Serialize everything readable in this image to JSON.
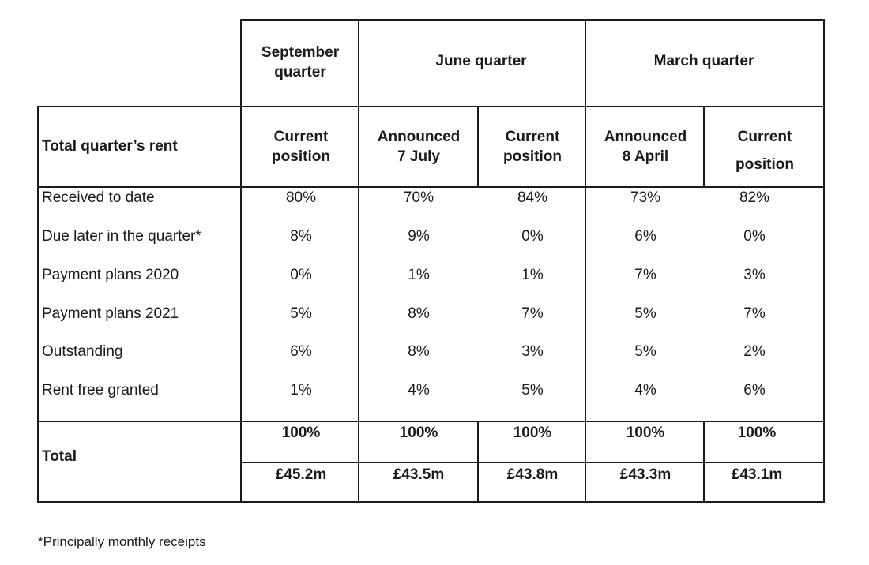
{
  "group_headers": [
    "September\nquarter",
    "June quarter",
    "March quarter"
  ],
  "row_header_title": "Total quarter’s rent",
  "column_headers": [
    "Current\nposition",
    "Announced\n7 July",
    "Current\nposition",
    "Announced\n8 April",
    "Current\nposition"
  ],
  "rows": [
    {
      "label": "Received to date",
      "values": [
        "80%",
        "70%",
        "84%",
        "73%",
        "82%"
      ]
    },
    {
      "label": "Due later in the quarter*",
      "values": [
        "8%",
        "9%",
        "0%",
        "6%",
        "0%"
      ]
    },
    {
      "label": "Payment plans 2020",
      "values": [
        "0%",
        "1%",
        "1%",
        "7%",
        "3%"
      ]
    },
    {
      "label": "Payment plans 2021",
      "values": [
        "5%",
        "8%",
        "7%",
        "5%",
        "7%"
      ]
    },
    {
      "label": "Outstanding",
      "values": [
        "6%",
        "8%",
        "3%",
        "5%",
        "2%"
      ]
    },
    {
      "label": "Rent free granted",
      "values": [
        "1%",
        "4%",
        "5%",
        "4%",
        "6%"
      ]
    }
  ],
  "total": {
    "label": "Total",
    "percent_values": [
      "100%",
      "100%",
      "100%",
      "100%",
      "100%"
    ],
    "amount_values": [
      "£45.2m",
      "£43.5m",
      "£43.8m",
      "£43.3m",
      "£43.1m"
    ]
  },
  "footnote": "*Principally monthly receipts"
}
